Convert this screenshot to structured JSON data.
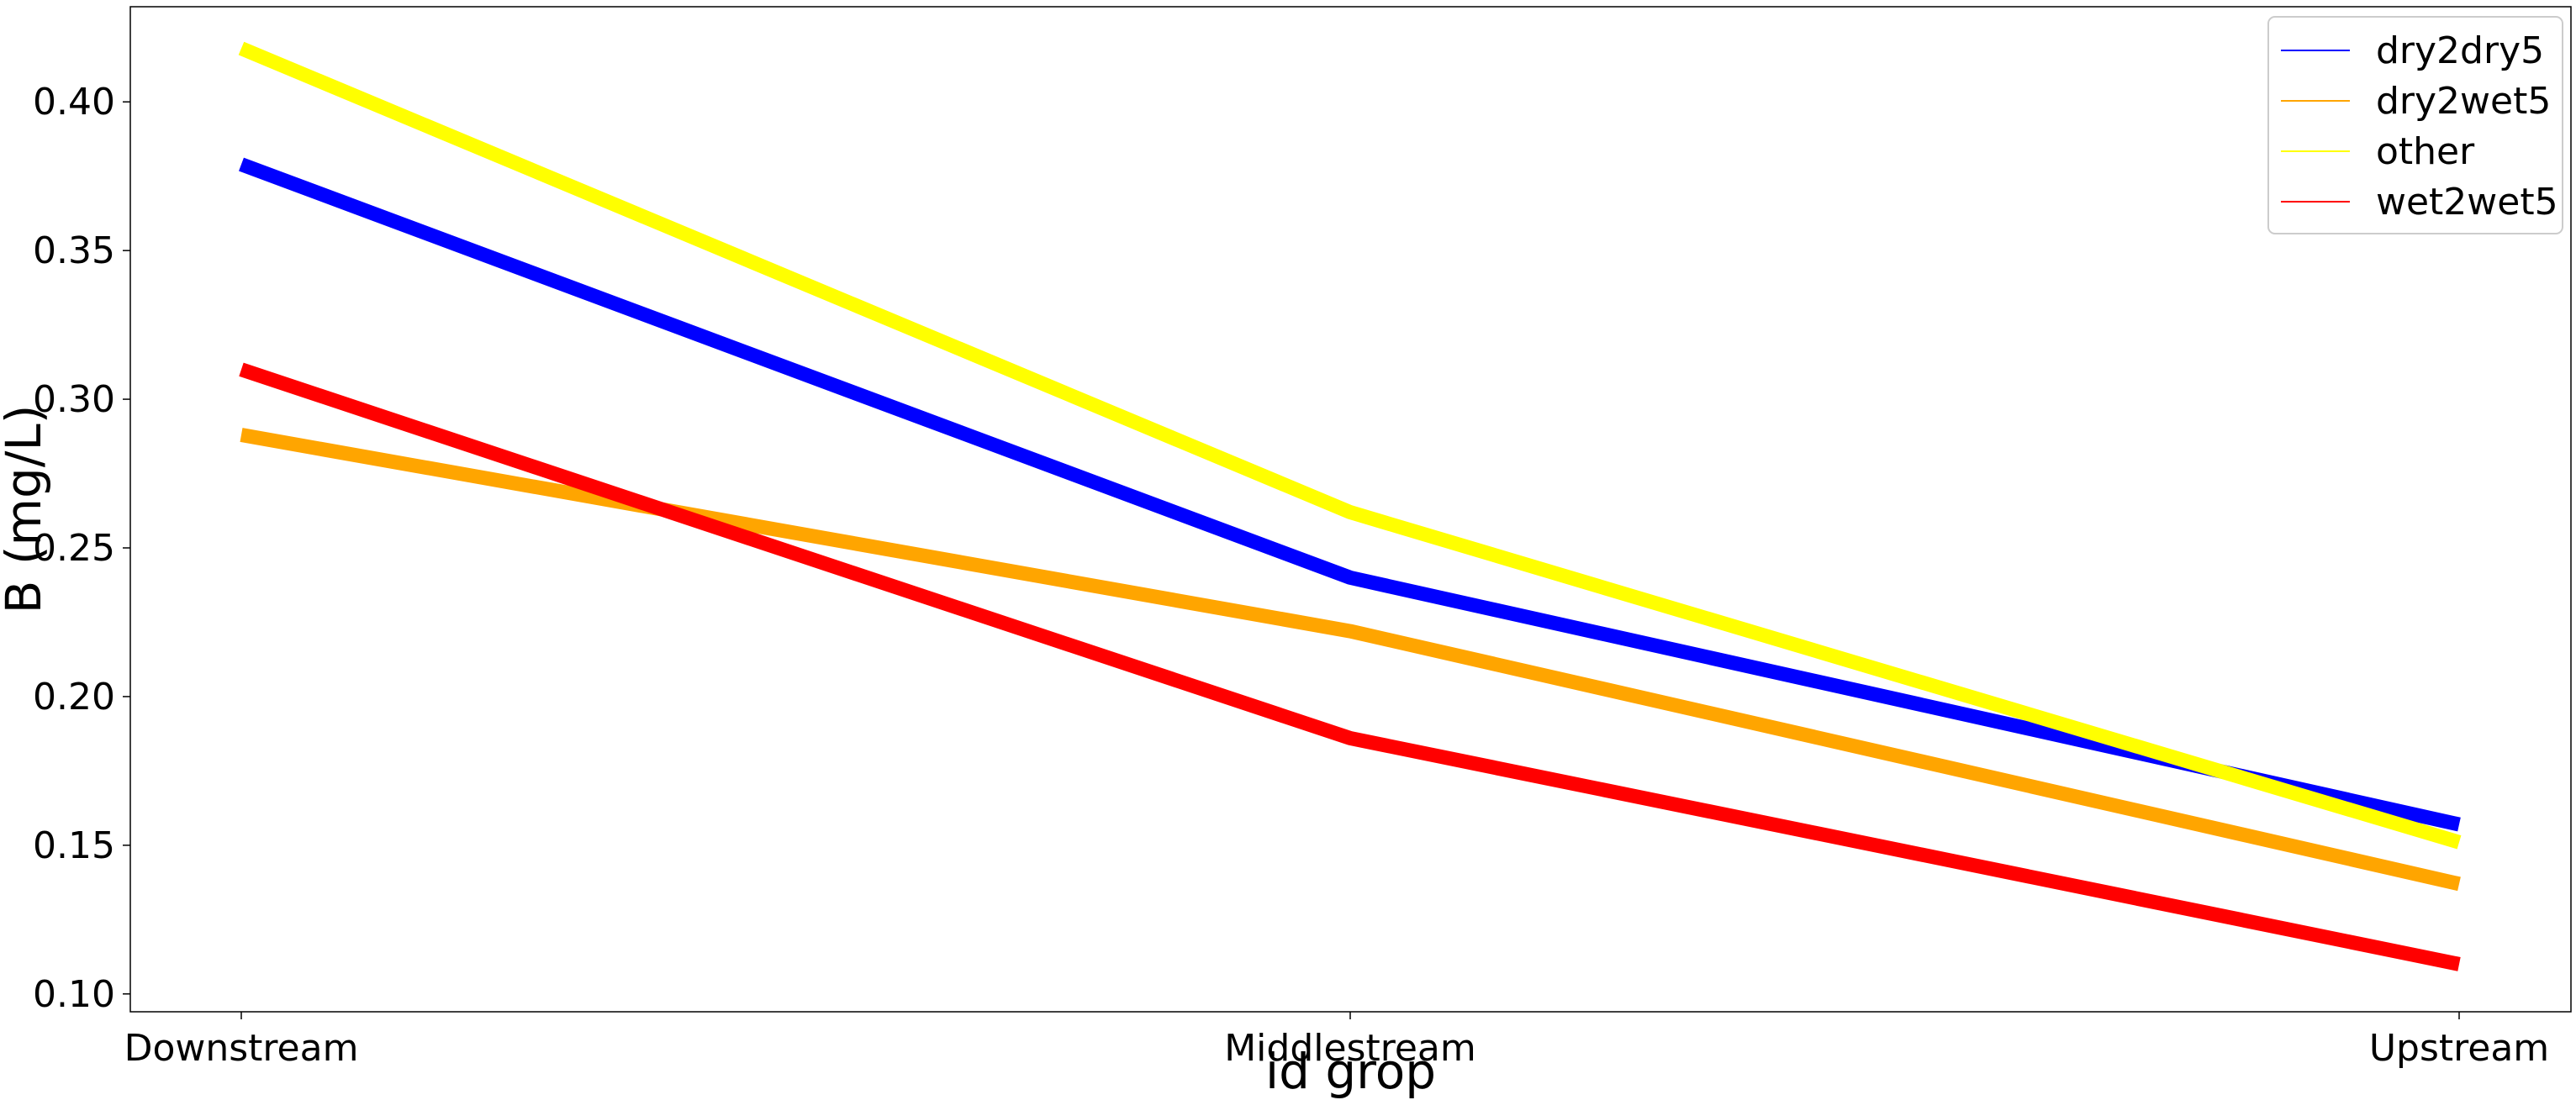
{
  "chart_data": {
    "type": "line",
    "title": "",
    "xlabel": "id grop",
    "ylabel": "B (mg/L)",
    "categories": [
      "Downstream",
      "Middlestream",
      "Upstream"
    ],
    "ylim": [
      0.094,
      0.432
    ],
    "yticks": [
      0.1,
      0.15,
      0.2,
      0.25,
      0.3,
      0.35,
      0.4
    ],
    "ytick_labels": [
      "0.10",
      "0.15",
      "0.20",
      "0.25",
      "0.30",
      "0.35",
      "0.40"
    ],
    "grid": false,
    "legend_position": "top-right",
    "series": [
      {
        "name": "dry2dry5",
        "color": "#0000ff",
        "values": [
          0.379,
          0.24,
          0.157
        ]
      },
      {
        "name": "dry2wet5",
        "color": "#ffa500",
        "values": [
          0.288,
          0.222,
          0.137
        ]
      },
      {
        "name": "other",
        "color": "#ffff00",
        "values": [
          0.418,
          0.262,
          0.151
        ]
      },
      {
        "name": "wet2wet5",
        "color": "#ff0000",
        "values": [
          0.31,
          0.186,
          0.11
        ]
      }
    ]
  }
}
